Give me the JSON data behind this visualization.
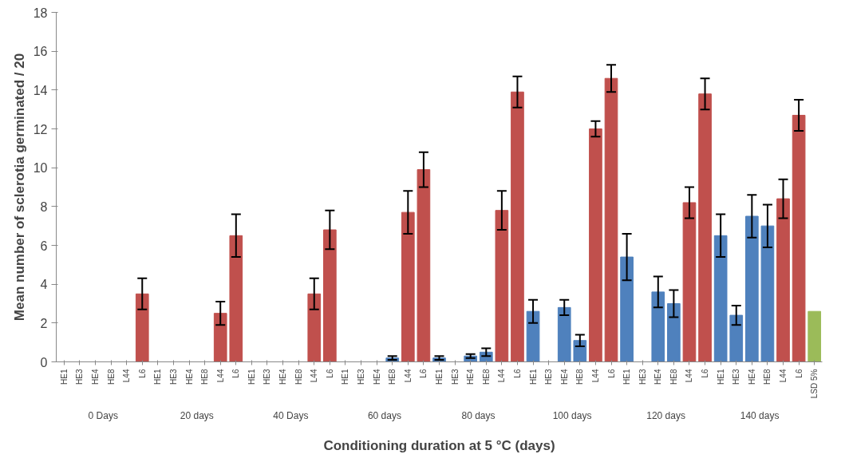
{
  "chart_data": {
    "type": "bar",
    "xlabel": "Conditioning duration at 5 °C (days)",
    "ylabel": "Mean number of sclerotia germinated / 20",
    "categories": [
      "HE1",
      "HE3",
      "HE4",
      "HE8",
      "L44",
      "L6",
      "HE1",
      "HE3",
      "HE4",
      "HE8",
      "L44",
      "L6",
      "HE1",
      "HE3",
      "HE4",
      "HE8",
      "L44",
      "L6",
      "HE1",
      "HE3",
      "HE4",
      "HE8",
      "L44",
      "L6",
      "HE1",
      "HE3",
      "HE4",
      "HE8",
      "L44",
      "L6",
      "HE1",
      "HE3",
      "HE4",
      "HE8",
      "L44",
      "L6",
      "HE1",
      "HE3",
      "HE4",
      "HE8",
      "L44",
      "L6",
      "HE1",
      "HE3",
      "HE4",
      "HE8",
      "L44",
      "L6",
      "LSD 5%"
    ],
    "annotations": [
      "0 Days",
      "20 days",
      "40 Days",
      "60 days",
      "80 days",
      "100 days",
      "120 days",
      "140 days"
    ],
    "values": [
      0,
      0,
      0,
      0,
      0,
      3.5,
      0,
      0,
      0,
      0,
      2.5,
      6.5,
      0,
      0,
      0,
      0,
      3.5,
      6.8,
      0,
      0,
      0,
      0.2,
      7.7,
      9.9,
      0.2,
      0,
      0.3,
      0.5,
      7.8,
      13.9,
      2.6,
      0,
      2.8,
      1.1,
      12.0,
      14.6,
      5.4,
      0,
      3.6,
      3.0,
      8.2,
      13.8,
      6.5,
      2.4,
      7.5,
      7.0,
      8.4,
      12.7,
      2.6
    ],
    "errors": [
      null,
      null,
      null,
      null,
      null,
      0.8,
      null,
      null,
      null,
      null,
      0.6,
      1.1,
      null,
      null,
      null,
      null,
      0.8,
      1.0,
      null,
      null,
      null,
      0.1,
      1.1,
      0.9,
      0.1,
      null,
      0.1,
      0.2,
      1.0,
      0.8,
      0.6,
      null,
      0.4,
      0.3,
      0.4,
      0.7,
      1.2,
      null,
      0.8,
      0.7,
      0.8,
      0.8,
      1.1,
      0.5,
      1.1,
      1.1,
      1.0,
      0.8,
      null
    ],
    "colors": [
      "#4f81bd",
      "#4f81bd",
      "#4f81bd",
      "#4f81bd",
      "#c0504d",
      "#c0504d",
      "#4f81bd",
      "#4f81bd",
      "#4f81bd",
      "#4f81bd",
      "#c0504d",
      "#c0504d",
      "#4f81bd",
      "#4f81bd",
      "#4f81bd",
      "#4f81bd",
      "#c0504d",
      "#c0504d",
      "#4f81bd",
      "#4f81bd",
      "#4f81bd",
      "#4f81bd",
      "#c0504d",
      "#c0504d",
      "#4f81bd",
      "#4f81bd",
      "#4f81bd",
      "#4f81bd",
      "#c0504d",
      "#c0504d",
      "#4f81bd",
      "#4f81bd",
      "#4f81bd",
      "#4f81bd",
      "#c0504d",
      "#c0504d",
      "#4f81bd",
      "#4f81bd",
      "#4f81bd",
      "#4f81bd",
      "#c0504d",
      "#c0504d",
      "#4f81bd",
      "#4f81bd",
      "#4f81bd",
      "#4f81bd",
      "#c0504d",
      "#c0504d",
      "#9bbb59"
    ],
    "ylim": [
      0,
      18
    ],
    "yticks": [
      0,
      2,
      4,
      6,
      8,
      10,
      12,
      14,
      16,
      18
    ],
    "grid": false
  }
}
